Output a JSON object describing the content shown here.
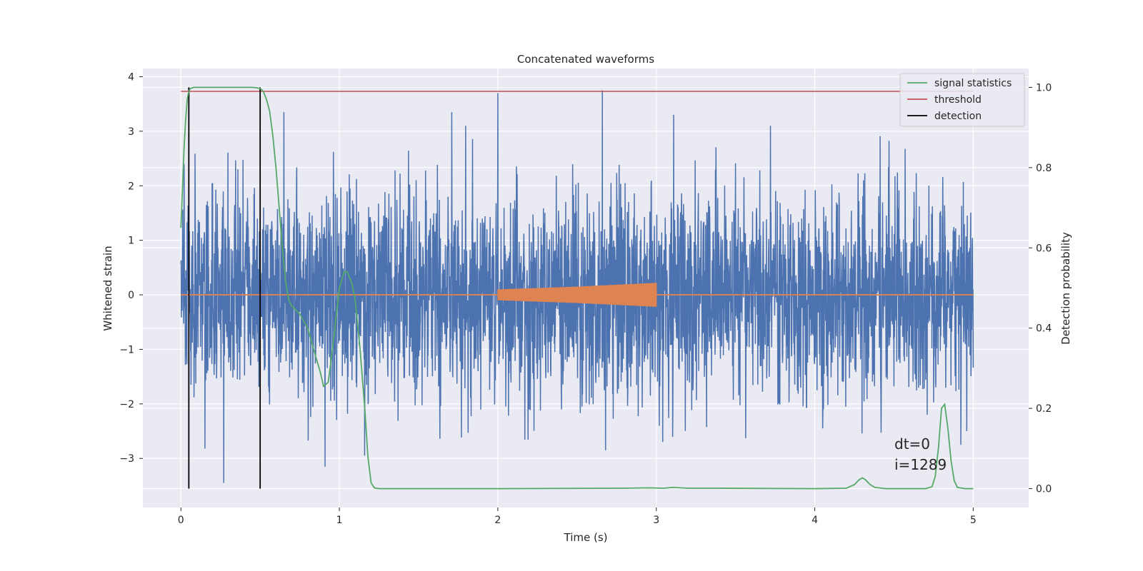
{
  "chart_data": {
    "type": "line",
    "title": "Concatenated waveforms",
    "xlabel": "Time (s)",
    "ylabel": "Whitened strain",
    "ylabel_right": "Detection probability",
    "xlim": [
      -0.24,
      5.35
    ],
    "ylim": [
      -3.9,
      4.15
    ],
    "ylim_right": [
      -0.047,
      1.047
    ],
    "x_ticks": [
      0,
      1,
      2,
      3,
      4,
      5
    ],
    "y_ticks": [
      -3,
      -2,
      -1,
      0,
      1,
      2,
      3,
      4
    ],
    "y_ticks_right": [
      0.0,
      0.2,
      0.4,
      0.6,
      0.8,
      1.0
    ],
    "grid": true,
    "legend_position": "top-right",
    "colors": {
      "strain": "#4c72b0",
      "injection": "#dd8452",
      "signal_statistics": "#55a868",
      "threshold": "#c44e52",
      "detection": "#000000",
      "plot_background": "#eaeaf2"
    },
    "legend": [
      {
        "label": "signal statistics",
        "color": "#55a868"
      },
      {
        "label": "threshold",
        "color": "#c44e52"
      },
      {
        "label": "detection",
        "color": "#000000"
      }
    ],
    "strain": {
      "x_range": [
        0,
        5
      ],
      "amplitude_range": [
        -3.45,
        3.75
      ],
      "peaks": [
        [
          0.02,
          2.4
        ],
        [
          0.27,
          -3.45
        ],
        [
          0.36,
          2.3
        ],
        [
          0.65,
          3.35
        ],
        [
          1.16,
          -2.95
        ],
        [
          1.71,
          3.35
        ],
        [
          2.0,
          3.7
        ],
        [
          2.66,
          3.75
        ],
        [
          2.68,
          -2.85
        ],
        [
          3.11,
          3.3
        ],
        [
          3.72,
          3.1
        ],
        [
          4.05,
          -2.45
        ],
        [
          4.71,
          -2.2
        ],
        [
          4.96,
          -2.5
        ]
      ]
    },
    "injection": {
      "x": [
        0,
        2,
        2.5,
        3,
        5
      ],
      "amplitude": [
        0,
        0.1,
        0.15,
        0.22,
        0
      ],
      "baseline": 0
    },
    "threshold": {
      "x": [
        0,
        5
      ],
      "value": 0.99
    },
    "detections": [
      0.05,
      0.5
    ],
    "signal_statistics": {
      "x": [
        0.0,
        0.01,
        0.02,
        0.03,
        0.04,
        0.05,
        0.06,
        0.08,
        0.1,
        0.15,
        0.2,
        0.3,
        0.4,
        0.45,
        0.48,
        0.5,
        0.52,
        0.54,
        0.56,
        0.58,
        0.6,
        0.62,
        0.64,
        0.66,
        0.68,
        0.7,
        0.75,
        0.8,
        0.85,
        0.88,
        0.9,
        0.93,
        0.96,
        1.0,
        1.03,
        1.05,
        1.08,
        1.1,
        1.13,
        1.16,
        1.18,
        1.2,
        1.22,
        1.25,
        1.3,
        2.0,
        2.8,
        2.95,
        3.05,
        3.1,
        3.2,
        3.4,
        4.0,
        4.2,
        4.25,
        4.28,
        4.3,
        4.32,
        4.35,
        4.38,
        4.45,
        4.6,
        4.7,
        4.74,
        4.76,
        4.78,
        4.8,
        4.82,
        4.84,
        4.86,
        4.88,
        4.9,
        4.95,
        5.0
      ],
      "y": [
        0.65,
        0.75,
        0.85,
        0.92,
        0.97,
        0.99,
        0.997,
        1.0,
        1.0,
        1.0,
        1.0,
        1.0,
        1.0,
        1.0,
        0.999,
        0.997,
        0.99,
        0.97,
        0.94,
        0.88,
        0.8,
        0.7,
        0.6,
        0.52,
        0.47,
        0.455,
        0.435,
        0.4,
        0.33,
        0.29,
        0.255,
        0.265,
        0.36,
        0.5,
        0.54,
        0.54,
        0.51,
        0.47,
        0.35,
        0.2,
        0.08,
        0.015,
        0.002,
        0.0,
        0.0,
        0.0,
        0.001,
        0.002,
        0.001,
        0.003,
        0.001,
        0.001,
        0.0,
        0.001,
        0.01,
        0.022,
        0.027,
        0.022,
        0.01,
        0.003,
        0.0,
        0.0,
        0.0,
        0.005,
        0.03,
        0.1,
        0.2,
        0.21,
        0.15,
        0.07,
        0.02,
        0.003,
        0.0,
        0.0
      ]
    },
    "annotations": [
      "dt=0",
      "i=1289"
    ]
  }
}
